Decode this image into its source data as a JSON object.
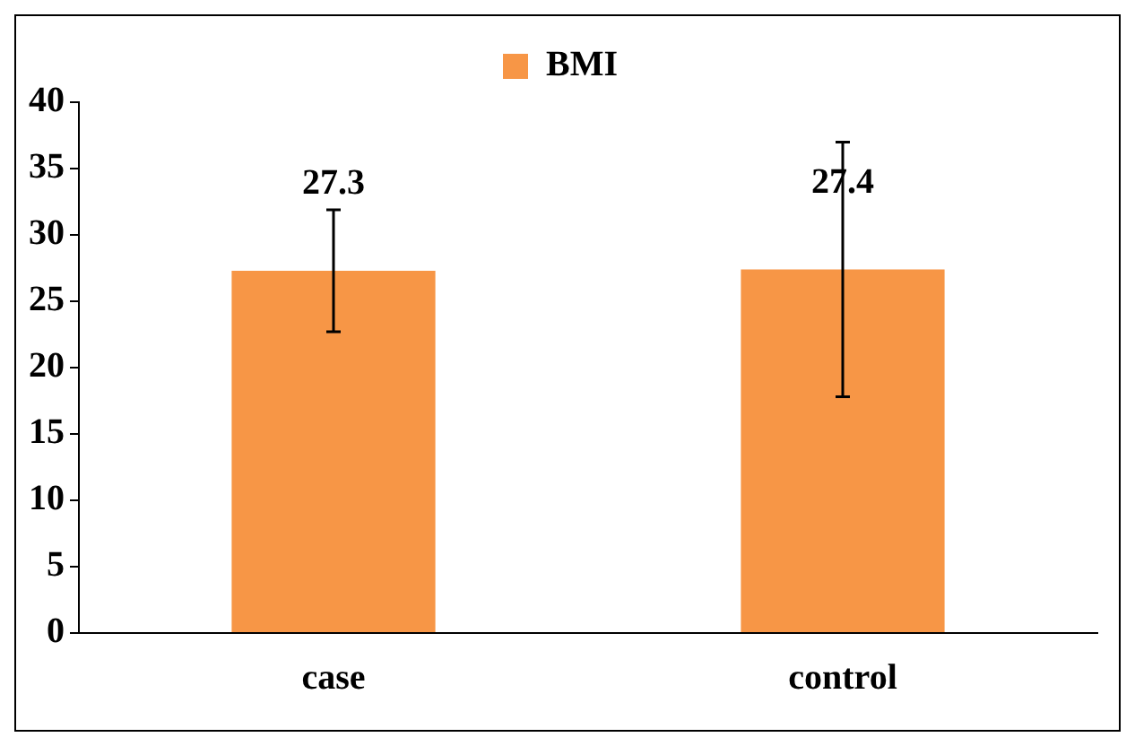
{
  "chart_data": {
    "type": "bar",
    "categories": [
      "case",
      "control"
    ],
    "series": [
      {
        "name": "BMI",
        "color": "#f79646",
        "values": [
          27.3,
          27.4
        ],
        "errors": [
          4.6,
          9.6
        ]
      }
    ],
    "ylim": [
      0,
      40
    ],
    "yticks": [
      0,
      5,
      10,
      15,
      20,
      25,
      30,
      35,
      40
    ],
    "grid": false,
    "legend": "top",
    "data_labels": true
  }
}
